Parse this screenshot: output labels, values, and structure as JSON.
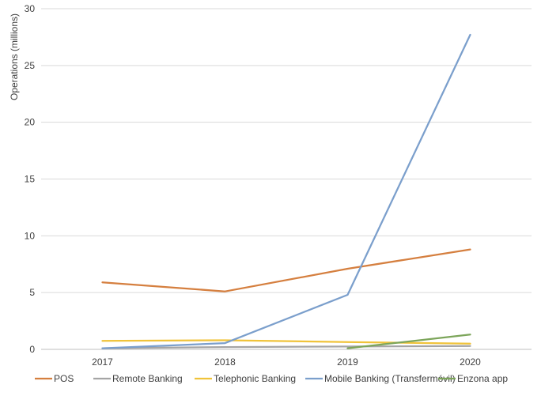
{
  "chart_data": {
    "type": "line",
    "title": "",
    "xlabel": "",
    "ylabel": "Operations (millions)",
    "x": [
      "2017",
      "2018",
      "2019",
      "2020"
    ],
    "ylim": [
      0,
      30
    ],
    "yticks": [
      "0",
      "5",
      "10",
      "15",
      "20",
      "25",
      "30"
    ],
    "grid": true,
    "legend_position": "bottom",
    "series": [
      {
        "name": "POS",
        "color": "#d57f3f",
        "values": [
          5.9,
          5.1,
          7.1,
          8.8
        ]
      },
      {
        "name": "Remote Banking",
        "color": "#a5a5a5",
        "values": [
          0.1,
          0.2,
          0.25,
          0.3
        ]
      },
      {
        "name": "Telephonic Banking",
        "color": "#f0c33a",
        "values": [
          0.75,
          0.8,
          0.65,
          0.5
        ]
      },
      {
        "name": "Mobile Banking (Transfermóvil)",
        "color": "#7b9fcc",
        "values": [
          0.1,
          0.55,
          4.8,
          27.7
        ]
      },
      {
        "name": "Enzona app",
        "color": "#7ca55a",
        "values": [
          null,
          null,
          0.1,
          1.3
        ]
      }
    ]
  }
}
